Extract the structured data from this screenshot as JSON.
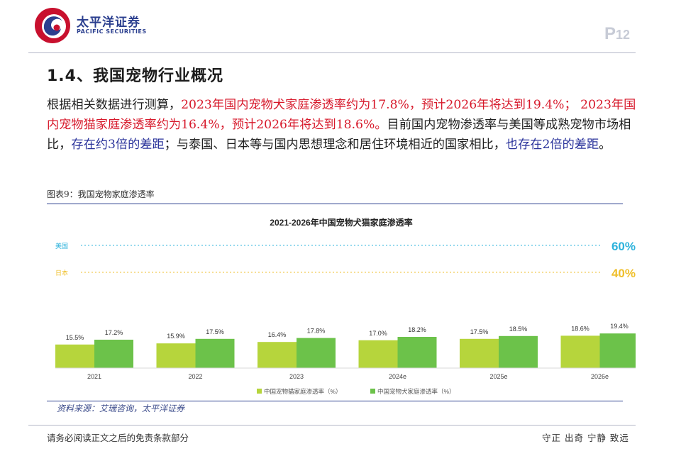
{
  "header": {
    "company_name": "太平洋证券",
    "company_name_en": "PACIFIC SECURITIES",
    "page_prefix": "P",
    "page_number": "12"
  },
  "section_title": "1.4、我国宠物行业概况",
  "paragraph": {
    "s1": "根据相关数据进行测算，",
    "s2": "2023年国内宠物犬家庭渗透率约为17.8%，预计2026年将达到19.4%；",
    "s3": " 2023年国内宠物猫家庭渗透率约为16.4%，预计2026年将达到18.6%。",
    "s4": "目前国内宠物渗透率与美国等成熟宠物市场相比，",
    "s5": "存在约3倍的差距",
    "s6": "；与泰国、日本等与国内思想理念和居住环境相近的国家相比，",
    "s7": "也存在2倍的差距",
    "s8": "。"
  },
  "figure": {
    "caption": "图表9：我国宠物家庭渗透率",
    "source": "资料来源：艾瑞咨询，太平洋证券"
  },
  "footer": {
    "disclaimer": "请务必阅读正文之后的免责条款部分",
    "motto": "守正 出奇 宁静 致远"
  },
  "colors": {
    "cat": "#b6d53c",
    "dog": "#6cc24a",
    "usa": "#2eb3dc",
    "japan": "#efbf2b",
    "brand": "#2b3f8f",
    "highlight_red": "#d7192b"
  },
  "chart_data": {
    "type": "bar",
    "title": "2021-2026年中国宠物犬猫家庭渗透率",
    "categories": [
      "2021",
      "2022",
      "2023",
      "2024e",
      "2025e",
      "2026e"
    ],
    "series": [
      {
        "name": "中国宠物猫家庭渗透率（%）",
        "values": [
          15.5,
          15.9,
          16.4,
          17.0,
          17.5,
          18.6
        ],
        "labels": [
          "15.5%",
          "15.9%",
          "16.4%",
          "17.0%",
          "17.5%",
          "18.6%"
        ]
      },
      {
        "name": "中国宠物犬家庭渗透率（%）",
        "values": [
          17.2,
          17.5,
          17.8,
          18.2,
          18.5,
          19.4
        ],
        "labels": [
          "17.2%",
          "17.5%",
          "17.8%",
          "18.2%",
          "18.5%",
          "19.4%"
        ]
      }
    ],
    "reference_lines": [
      {
        "name": "美国",
        "value": 60,
        "label": "60%"
      },
      {
        "name": "日本",
        "value": 40,
        "label": "40%"
      }
    ],
    "legend_position": "bottom",
    "grid": false
  }
}
